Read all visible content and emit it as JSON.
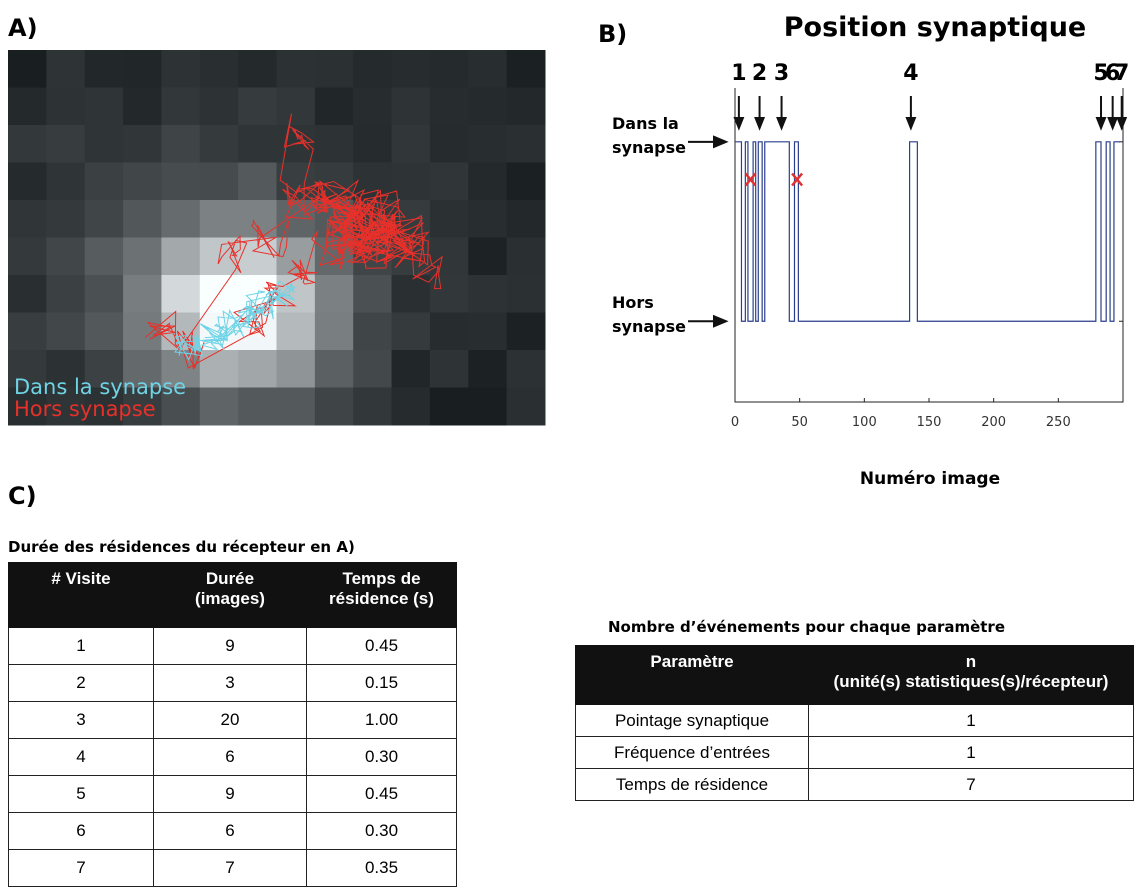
{
  "panel_labels": {
    "a": "A)",
    "b": "B)",
    "c": "C)"
  },
  "panel_a": {
    "legend": [
      {
        "label": "Dans la synapse",
        "color": "#6fd3e6"
      },
      {
        "label": "Hors synapse",
        "color": "#e8302a"
      }
    ]
  },
  "chart_data": {
    "type": "line",
    "title": "Position synaptique",
    "xlabel": "Numéro image",
    "x": [
      0,
      5,
      5,
      8,
      8,
      10,
      10,
      14,
      14,
      16,
      16,
      18,
      18,
      21,
      21,
      23,
      23,
      42,
      42,
      46,
      46,
      49,
      49,
      135,
      135,
      141,
      141,
      279,
      279,
      283,
      283,
      287,
      287,
      290,
      290,
      293,
      293,
      298
    ],
    "values": [
      1,
      1,
      0,
      0,
      1,
      1,
      0,
      0,
      1,
      1,
      0,
      0,
      1,
      1,
      0,
      0,
      1,
      1,
      0,
      0,
      1,
      1,
      0,
      0,
      1,
      1,
      0,
      0,
      1,
      1,
      0,
      0,
      1,
      1,
      0,
      0,
      1,
      1
    ],
    "color": "#2b3f8f",
    "xlim": [
      0,
      300
    ],
    "xticks": [
      0,
      50,
      100,
      150,
      200,
      250
    ],
    "ylim": [
      -0.45,
      1.3
    ],
    "yticks": [
      {
        "value": 0,
        "label": "Hors synapse"
      },
      {
        "value": 1,
        "label": "Dans la synapse"
      }
    ],
    "annotations": [
      {
        "label": "1",
        "x": 3
      },
      {
        "label": "2",
        "x": 19
      },
      {
        "label": "3",
        "x": 36
      },
      {
        "label": "4",
        "x": 136
      },
      {
        "label": "5",
        "x": 283
      },
      {
        "label": "6",
        "x": 292
      },
      {
        "label": "7",
        "x": 299
      }
    ],
    "excluded": {
      "x": [
        12,
        48
      ],
      "y": [
        0.79,
        0.79
      ],
      "color": "#e03030"
    }
  },
  "residence_table": {
    "title": "Durée des résidences du récepteur en A)",
    "header": [
      "# Visite",
      "Durée\n(images)",
      "Temps de\nrésidence (s)"
    ],
    "rows": [
      [
        "1",
        "9",
        "0.45"
      ],
      [
        "2",
        "3",
        "0.15"
      ],
      [
        "3",
        "20",
        "1.00"
      ],
      [
        "4",
        "6",
        "0.30"
      ],
      [
        "5",
        "9",
        "0.45"
      ],
      [
        "6",
        "6",
        "0.30"
      ],
      [
        "7",
        "7",
        "0.35"
      ]
    ]
  },
  "events_table": {
    "title": "Nombre d’événements pour chaque paramètre",
    "header": [
      "Paramètre",
      "n\n(unité(s) statistiques(s)/récepteur)"
    ],
    "rows": [
      [
        "Pointage synaptique",
        "1"
      ],
      [
        "Fréquence d’entrées",
        "1"
      ],
      [
        "Temps de résidence",
        "7"
      ]
    ]
  }
}
